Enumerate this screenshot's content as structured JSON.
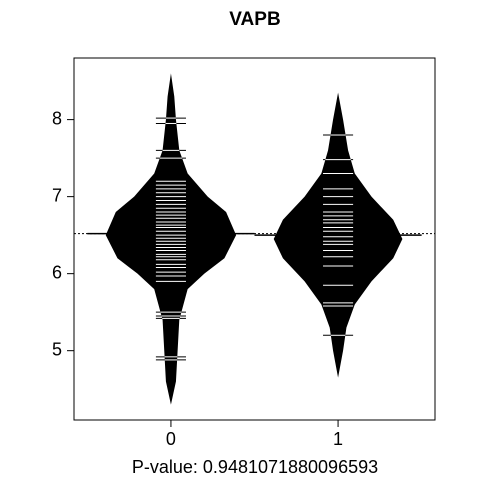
{
  "chart_data": {
    "type": "beanplot",
    "title": "VAPB",
    "xlabel": "P-value: 0.9481071880096593",
    "xlim": [
      -0.58,
      1.58
    ],
    "ylim": [
      4.1,
      8.8
    ],
    "xticks": [
      0,
      1
    ],
    "yticks": [
      5,
      6,
      7,
      8
    ],
    "overall_mean": 6.52,
    "color": "#000000",
    "line_color": "#ffffff",
    "series": [
      {
        "name": "0",
        "x": 0,
        "mean": 6.52,
        "density_y": [
          4.3,
          4.6,
          5.0,
          5.4,
          5.8,
          6.0,
          6.2,
          6.5,
          6.8,
          7.0,
          7.3,
          7.6,
          8.0,
          8.3,
          8.6
        ],
        "density_width": [
          0,
          0.03,
          0.04,
          0.05,
          0.1,
          0.2,
          0.32,
          0.39,
          0.33,
          0.22,
          0.1,
          0.05,
          0.03,
          0.02,
          0
        ],
        "values": [
          4.88,
          4.92,
          5.42,
          5.45,
          5.5,
          5.9,
          5.97,
          6.02,
          6.08,
          6.12,
          6.18,
          6.22,
          6.25,
          6.3,
          6.34,
          6.38,
          6.42,
          6.46,
          6.5,
          6.55,
          6.6,
          6.63,
          6.67,
          6.72,
          6.76,
          6.8,
          6.85,
          6.9,
          6.95,
          7.0,
          7.05,
          7.1,
          7.15,
          7.2,
          7.5,
          7.6,
          7.95,
          8.02
        ]
      },
      {
        "name": "1",
        "x": 1,
        "mean": 6.5,
        "density_y": [
          4.65,
          5.0,
          5.3,
          5.6,
          5.9,
          6.2,
          6.45,
          6.7,
          7.0,
          7.3,
          7.6,
          8.0,
          8.35
        ],
        "density_width": [
          0,
          0.03,
          0.05,
          0.1,
          0.2,
          0.33,
          0.385,
          0.33,
          0.2,
          0.1,
          0.06,
          0.03,
          0
        ],
        "values": [
          5.2,
          5.58,
          5.62,
          5.85,
          6.1,
          6.22,
          6.3,
          6.38,
          6.42,
          6.48,
          6.55,
          6.6,
          6.66,
          6.7,
          6.75,
          6.8,
          6.9,
          7.0,
          7.1,
          7.3,
          7.48,
          7.8
        ]
      }
    ]
  }
}
